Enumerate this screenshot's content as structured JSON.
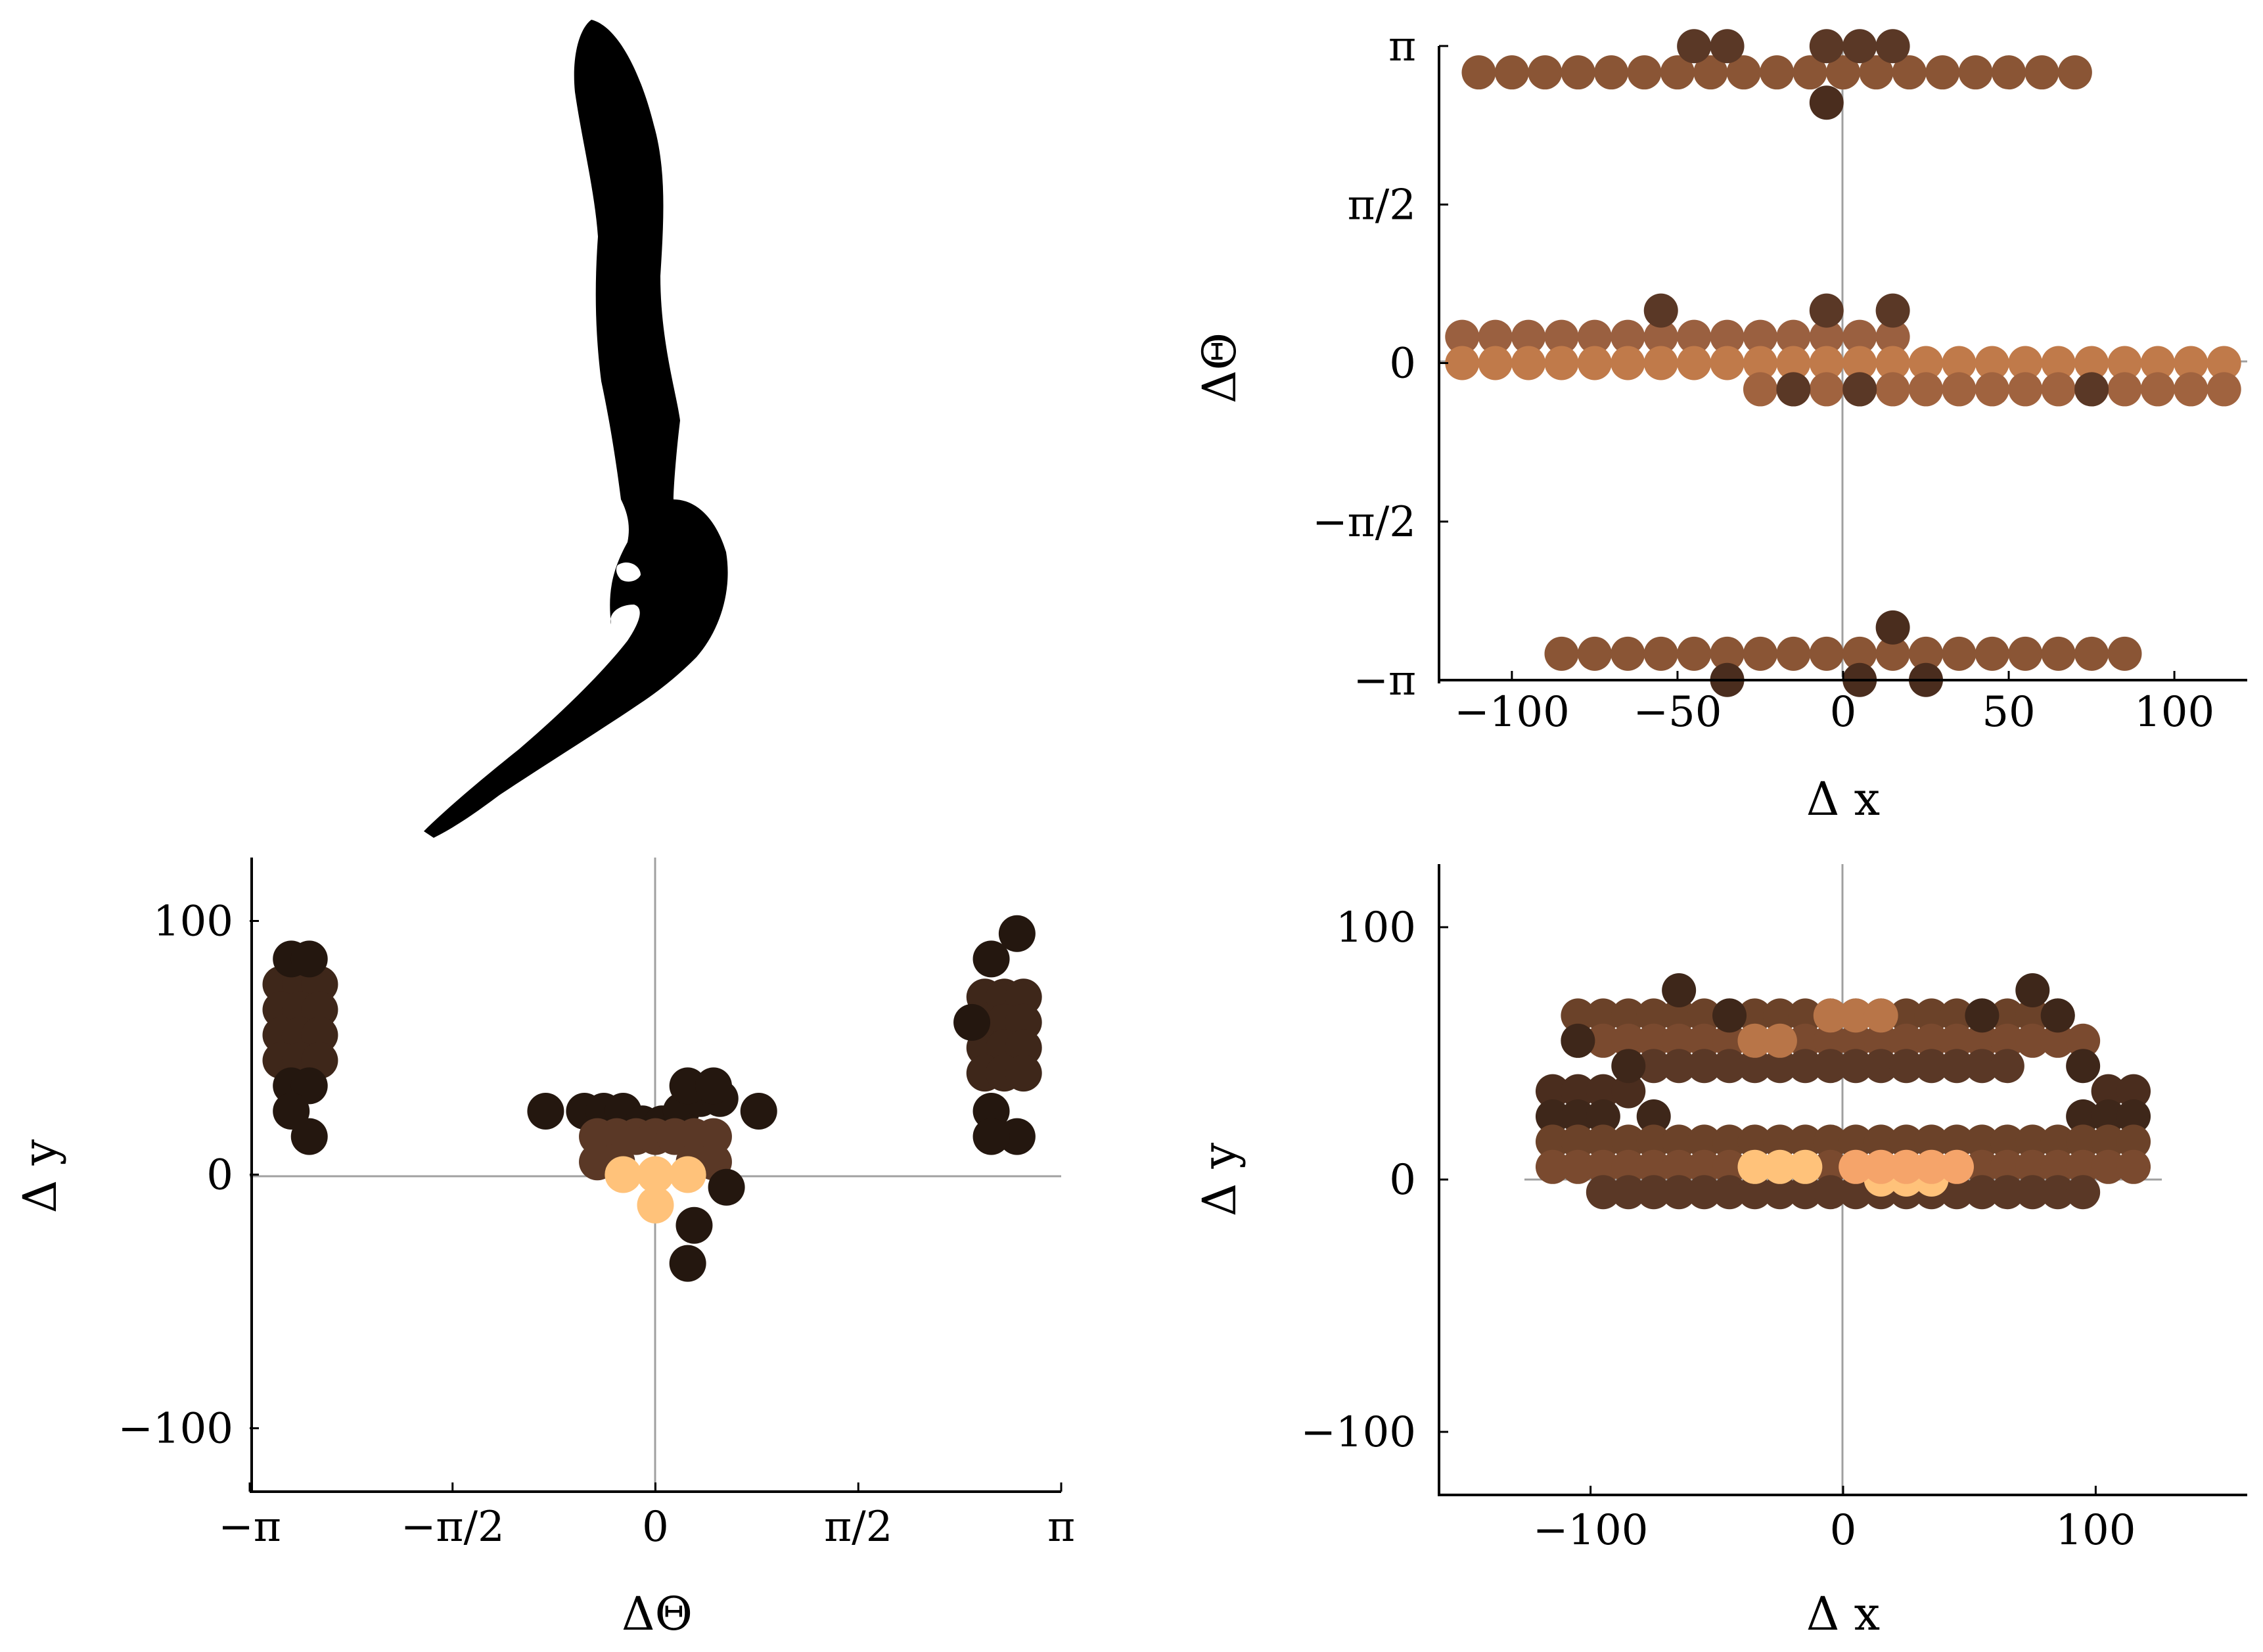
{
  "colors": {
    "dark": "#1e130d",
    "mid": "#8a5535",
    "light": "#ffc27a",
    "silhouette": "#000000",
    "axis": "#000000",
    "zero_line": "#a0a0a0"
  },
  "silhouette": {
    "icon": "shape-silhouette-icon"
  },
  "chart_data": [
    {
      "type": "scatter",
      "id": "top-right",
      "xlabel": "Δ x",
      "ylabel": "ΔΘ",
      "xlim": [
        -122,
        122
      ],
      "ylim": [
        -3.1416,
        3.1416
      ],
      "xticks": [
        {
          "v": -100,
          "label": "−100"
        },
        {
          "v": -50,
          "label": "−50"
        },
        {
          "v": 0,
          "label": "0"
        },
        {
          "v": 50,
          "label": "50"
        },
        {
          "v": 100,
          "label": "100"
        }
      ],
      "yticks": [
        {
          "v": -3.1416,
          "label": "−π"
        },
        {
          "v": -1.5708,
          "label": "−π/2"
        },
        {
          "v": 0,
          "label": "0"
        },
        {
          "v": 1.5708,
          "label": "π/2"
        },
        {
          "v": 3.1416,
          "label": "π"
        }
      ],
      "series": [
        {
          "x": [
            -110,
            -100,
            -90,
            -80,
            -70,
            -60,
            -50,
            -40,
            -30,
            -20,
            -10,
            0,
            10,
            20,
            30,
            40,
            50,
            60,
            70
          ],
          "y": 2.88,
          "color": "#8a5535"
        },
        {
          "x": [
            -45,
            -35,
            -5,
            5,
            15
          ],
          "y": 3.14,
          "color": "#5a3826"
        },
        {
          "x": [
            -5
          ],
          "y": 2.58,
          "color": "#4a2d1e"
        },
        {
          "x": [
            -115,
            -105,
            -95,
            -85,
            -75,
            -65,
            -55,
            -45,
            -35,
            -25,
            -15,
            -5,
            5,
            15
          ],
          "y": 0.26,
          "color": "#9a6040"
        },
        {
          "x": [
            -115,
            -105,
            -95,
            -85,
            -75,
            -65,
            -55,
            -45,
            -35,
            -25,
            -15,
            -5,
            5,
            15,
            25,
            35,
            45,
            55,
            65,
            75,
            85,
            95,
            105,
            115
          ],
          "y": 0.0,
          "color": "#c07a4a"
        },
        {
          "x": [
            -25,
            -15,
            -5,
            5,
            15,
            25,
            35,
            45,
            55,
            65,
            75,
            85,
            95,
            105,
            115
          ],
          "y": -0.26,
          "color": "#a0633f"
        },
        {
          "x": [
            -55,
            -5,
            15
          ],
          "y": 0.52,
          "color": "#5a3826"
        },
        {
          "x": [
            -15,
            5,
            75
          ],
          "y": -0.26,
          "color": "#5a3826"
        },
        {
          "x": [
            -85,
            -75,
            -65,
            -55,
            -45,
            -35,
            -25,
            -15,
            -5,
            5,
            15,
            25,
            35,
            45,
            55,
            65,
            75,
            85
          ],
          "y": -2.88,
          "color": "#8a5535"
        },
        {
          "x": [
            -35,
            5,
            25
          ],
          "y": -3.14,
          "color": "#4a2d1e"
        },
        {
          "x": [
            15
          ],
          "y": -2.62,
          "color": "#4a2d1e"
        }
      ]
    },
    {
      "type": "scatter",
      "id": "bottom-left",
      "xlabel": "ΔΘ",
      "ylabel": "Δ y",
      "xlim": [
        -3.1416,
        3.1416
      ],
      "ylim": [
        -125,
        125
      ],
      "xticks": [
        {
          "v": -3.1416,
          "label": "−π"
        },
        {
          "v": -1.5708,
          "label": "−π/2"
        },
        {
          "v": 0,
          "label": "0"
        },
        {
          "v": 1.5708,
          "label": "π/2"
        },
        {
          "v": 3.1416,
          "label": "π"
        }
      ],
      "yticks": [
        {
          "v": -100,
          "label": "−100"
        },
        {
          "v": 0,
          "label": "0"
        },
        {
          "v": 100,
          "label": "100"
        }
      ],
      "series": [
        {
          "x": [
            -2.9,
            -2.75,
            -2.6,
            -2.9,
            -2.75,
            -2.6,
            -2.9,
            -2.75,
            -2.6,
            -2.9,
            -2.75,
            -2.6
          ],
          "y": [
            75,
            75,
            75,
            65,
            65,
            65,
            55,
            55,
            55,
            45,
            45,
            45
          ],
          "color": "#3e271a"
        },
        {
          "x": [
            -2.82,
            -2.82,
            -2.68,
            -2.68,
            -2.82,
            -2.68
          ],
          "y": [
            85,
            35,
            85,
            35,
            25,
            15
          ],
          "color": "#24170f"
        },
        {
          "x": [
            2.55,
            2.7,
            2.85,
            2.55,
            2.7,
            2.85,
            2.55,
            2.7,
            2.85,
            2.55,
            2.7,
            2.85
          ],
          "y": [
            70,
            70,
            70,
            60,
            60,
            60,
            50,
            50,
            50,
            40,
            40,
            40
          ],
          "color": "#3e271a"
        },
        {
          "x": [
            2.6,
            2.6,
            2.8,
            2.8,
            2.45,
            2.6
          ],
          "y": [
            85,
            25,
            95,
            15,
            60,
            15
          ],
          "color": "#24170f"
        },
        {
          "x": [
            -0.55,
            -0.4,
            -0.25,
            -0.1,
            0.05,
            0.2,
            0.35,
            0.5,
            -0.85,
            0.8,
            0.25,
            0.45
          ],
          "y": [
            25,
            25,
            25,
            20,
            20,
            25,
            30,
            30,
            25,
            25,
            35,
            35
          ],
          "color": "#24170f"
        },
        {
          "x": [
            -0.45,
            -0.3,
            -0.15,
            0,
            0.15,
            0.3,
            0.45,
            -0.45,
            -0.3,
            0.3,
            0.45
          ],
          "y": [
            15,
            15,
            15,
            15,
            15,
            15,
            15,
            5,
            5,
            5,
            5
          ],
          "color": "#5a3826"
        },
        {
          "x": [
            -0.25,
            0,
            0.25,
            0
          ],
          "y": [
            0,
            0,
            0,
            -12
          ],
          "color": "#ffc27a"
        },
        {
          "x": [
            0.25,
            0.55,
            0.3
          ],
          "y": [
            -35,
            -5,
            -20
          ],
          "color": "#24170f"
        }
      ]
    },
    {
      "type": "scatter",
      "id": "bottom-right",
      "xlabel": "Δ x",
      "ylabel": "Δ y",
      "xlim": [
        -160,
        160
      ],
      "ylim": [
        -125,
        125
      ],
      "xticks": [
        {
          "v": -100,
          "label": "−100"
        },
        {
          "v": 0,
          "label": "0"
        },
        {
          "v": 100,
          "label": "100"
        }
      ],
      "yticks": [
        {
          "v": -100,
          "label": "−100"
        },
        {
          "v": 0,
          "label": "0"
        },
        {
          "v": 100,
          "label": "100"
        }
      ],
      "series": [
        {
          "x": [
            -105,
            -95,
            -85,
            -75,
            -65,
            -55,
            -45,
            -35,
            -25,
            -15,
            -5,
            5,
            15,
            25,
            35,
            45,
            55,
            65,
            75,
            85
          ],
          "y": 65,
          "color": "#6b4229"
        },
        {
          "x": [
            -105,
            -95,
            -85,
            -75,
            -65,
            -55,
            -45,
            -35,
            -25,
            -15,
            -5,
            5,
            15,
            25,
            35,
            45,
            55,
            65,
            75,
            85,
            95
          ],
          "y": 55,
          "color": "#7a4a2f"
        },
        {
          "x": [
            -75,
            -65,
            -55,
            -45,
            -35,
            -25,
            -15,
            -5,
            5,
            15,
            25,
            35,
            45,
            55,
            65
          ],
          "y": 45,
          "color": "#5a3826"
        },
        {
          "x": [
            -5,
            5,
            15,
            -35,
            -25
          ],
          "y": [
            65,
            65,
            65,
            55,
            55
          ],
          "color": "#b87548"
        },
        {
          "x": [
            -115,
            -105,
            -95,
            -85,
            105,
            115
          ],
          "y": [
            35,
            35,
            35,
            35,
            35,
            35
          ],
          "color": "#4a2d1e"
        },
        {
          "x": [
            -115,
            -105,
            -95,
            -75,
            95,
            105,
            115
          ],
          "y": [
            25,
            25,
            25,
            25,
            25,
            25,
            25
          ],
          "color": "#3e271a"
        },
        {
          "x": [
            -115,
            -105,
            -95,
            -85,
            -75,
            -65,
            -55,
            -45,
            -35,
            -25,
            -15,
            -5,
            5,
            15,
            25,
            35,
            45,
            55,
            65,
            75,
            85,
            95,
            105,
            115
          ],
          "y": 15,
          "color": "#6b4229"
        },
        {
          "x": [
            -115,
            -105,
            -95,
            -85,
            -75,
            -65,
            -55,
            -45,
            -35,
            -25,
            -15,
            -5,
            5,
            15,
            25,
            35,
            45,
            55,
            65,
            75,
            85,
            95,
            105,
            115
          ],
          "y": 5,
          "color": "#7a4a2f"
        },
        {
          "x": [
            -95,
            -85,
            -75,
            -65,
            -55,
            -45,
            -35,
            -25,
            -15,
            -5,
            5,
            15,
            25,
            35,
            45,
            55,
            65,
            75,
            85,
            95
          ],
          "y": -5,
          "color": "#5a3826"
        },
        {
          "x": [
            -35,
            -25,
            -15,
            15,
            25,
            35
          ],
          "y": [
            5,
            5,
            5,
            0,
            0,
            0
          ],
          "color": "#ffc27a"
        },
        {
          "x": [
            5,
            15,
            25,
            35,
            45
          ],
          "y": [
            5,
            5,
            5,
            5,
            5
          ],
          "color": "#f5a46a"
        },
        {
          "x": [
            -65,
            -45,
            55,
            75,
            85
          ],
          "y": [
            75,
            65,
            65,
            75,
            65
          ],
          "color": "#3e271a"
        },
        {
          "x": [
            -105,
            -85,
            95
          ],
          "y": [
            55,
            45,
            45
          ],
          "color": "#3e271a"
        }
      ]
    }
  ]
}
